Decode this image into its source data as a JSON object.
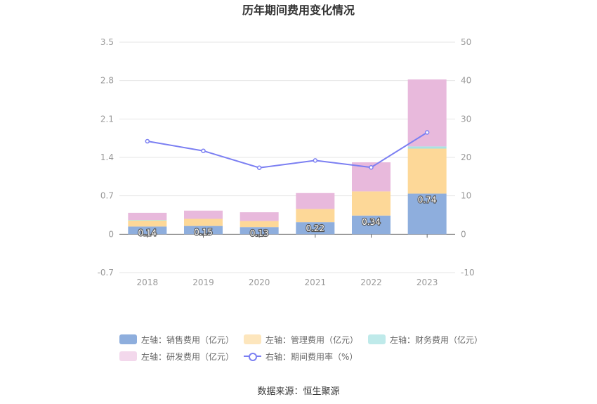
{
  "chart_data": {
    "type": "bar",
    "title": "历年期间费用变化情况",
    "categories": [
      "2018",
      "2019",
      "2020",
      "2021",
      "2022",
      "2023"
    ],
    "left_axis": {
      "ylim": [
        -0.7,
        3.5
      ],
      "ticks": [
        "3.5",
        "2.8",
        "2.1",
        "1.4",
        "0.7",
        "0",
        "-0.7"
      ]
    },
    "right_axis": {
      "ylim": [
        -10,
        50
      ],
      "ticks": [
        "50",
        "40",
        "30",
        "20",
        "10",
        "0",
        "-10"
      ]
    },
    "series": [
      {
        "name": "左轴：销售费用（亿元）",
        "type": "bar",
        "stack": "left",
        "color": "#8eaedd",
        "values": [
          0.14,
          0.15,
          0.13,
          0.22,
          0.34,
          0.74
        ],
        "labels": [
          "0.14",
          "0.15",
          "0.13",
          "0.22",
          "0.34",
          "0.74"
        ]
      },
      {
        "name": "左轴：管理费用（亿元）",
        "type": "bar",
        "stack": "left",
        "color": "#fdd898",
        "values": [
          0.11,
          0.13,
          0.11,
          0.24,
          0.44,
          0.82
        ]
      },
      {
        "name": "左轴：财务费用（亿元）",
        "type": "bar",
        "stack": "left",
        "color": "#a9e2e3",
        "values": [
          0.01,
          0.0,
          0.0,
          0.0,
          0.0,
          0.04
        ]
      },
      {
        "name": "左轴：研发费用（亿元）",
        "type": "bar",
        "stack": "left",
        "color": "#e8b9dc",
        "values": [
          0.13,
          0.15,
          0.16,
          0.29,
          0.53,
          1.22
        ]
      },
      {
        "name": "右轴：期间费用率（%）",
        "type": "line",
        "axis": "right",
        "color": "#7b7ff2",
        "values": [
          24.2,
          21.7,
          17.3,
          19.2,
          17.4,
          26.5
        ]
      }
    ],
    "legend_position": "bottom",
    "grid": true
  },
  "source_text": "数据来源：恒生聚源"
}
